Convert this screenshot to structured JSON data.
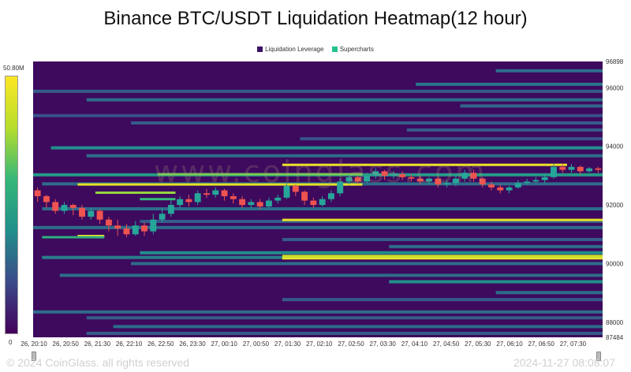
{
  "chart_data": {
    "type": "heatmap",
    "title": "Binance BTC/USDT Liquidation Heatmap(12 hour)",
    "legend": [
      {
        "name": "Liquidation Leverage",
        "color": "#3b1264"
      },
      {
        "name": "Supercharts",
        "color": "#23c28a"
      }
    ],
    "colorbar": {
      "max_label": "50.80M",
      "min_label": "0",
      "colors": [
        "#44015a",
        "#3b4b8a",
        "#218f8b",
        "#35b779",
        "#b6de2b",
        "#fde725"
      ]
    },
    "background_color": "#3d0a5e",
    "x_tick_labels": [
      "26, 20:10",
      "26, 20:50",
      "26, 21:30",
      "26, 22:10",
      "26, 22:50",
      "26, 23:30",
      "27, 00:10",
      "27, 00:50",
      "27, 01:30",
      "27, 02:10",
      "27, 02:50",
      "27, 03:30",
      "27, 04:10",
      "27, 04:50",
      "27, 05:30",
      "27, 06:10",
      "27, 06:50",
      "27, 07:30"
    ],
    "y_tick_labels": [
      "96898",
      "96000",
      "94000",
      "92000",
      "90000",
      "88000",
      "87484"
    ],
    "ylim": [
      87484,
      96898
    ],
    "xlim_index": [
      0,
      64
    ],
    "liquidation_bands": [
      {
        "price": 96580,
        "start": 52,
        "intensity": 0.3
      },
      {
        "price": 96120,
        "start": 43,
        "intensity": 0.33
      },
      {
        "price": 95880,
        "start": 0,
        "intensity": 0.25
      },
      {
        "price": 95590,
        "start": 6,
        "intensity": 0.3
      },
      {
        "price": 95380,
        "start": 48,
        "intensity": 0.28
      },
      {
        "price": 95050,
        "start": 0,
        "intensity": 0.22
      },
      {
        "price": 94800,
        "start": 11,
        "intensity": 0.25
      },
      {
        "price": 94560,
        "start": 42,
        "intensity": 0.25
      },
      {
        "price": 94260,
        "start": 30,
        "intensity": 0.22
      },
      {
        "price": 93950,
        "start": 2,
        "intensity": 0.4
      },
      {
        "price": 93680,
        "start": 6,
        "intensity": 0.3
      },
      {
        "price": 93030,
        "start": 0,
        "intensity": 0.45
      },
      {
        "price": 92720,
        "start": 1,
        "intensity": 0.3
      },
      {
        "price": 91870,
        "start": 1,
        "intensity": 0.3
      },
      {
        "price": 91440,
        "start": 12,
        "intensity": 0.25
      },
      {
        "price": 91230,
        "start": 0,
        "intensity": 0.3
      },
      {
        "price": 90820,
        "start": 28,
        "intensity": 0.25
      },
      {
        "price": 90580,
        "start": 40,
        "intensity": 0.3
      },
      {
        "price": 90370,
        "start": 12,
        "intensity": 0.4
      },
      {
        "price": 90210,
        "start": 1,
        "intensity": 0.35
      },
      {
        "price": 90000,
        "start": 11,
        "intensity": 0.3
      },
      {
        "price": 89600,
        "start": 3,
        "intensity": 0.3
      },
      {
        "price": 89380,
        "start": 40,
        "intensity": 0.4
      },
      {
        "price": 89010,
        "start": 52,
        "intensity": 0.3
      },
      {
        "price": 88770,
        "start": 28,
        "intensity": 0.25
      },
      {
        "price": 88350,
        "start": 0,
        "intensity": 0.3
      },
      {
        "price": 88150,
        "start": 6,
        "intensity": 0.25
      },
      {
        "price": 87850,
        "start": 9,
        "intensity": 0.3
      },
      {
        "price": 87620,
        "start": 6,
        "intensity": 0.25
      }
    ],
    "highlight_bands": [
      {
        "price": 93370,
        "start": 28,
        "end": 60,
        "intensity": 0.95
      },
      {
        "price": 93050,
        "start": 14,
        "end": 37,
        "intensity": 0.7
      },
      {
        "price": 92700,
        "start": 5,
        "end": 37,
        "intensity": 0.92
      },
      {
        "price": 92420,
        "start": 7,
        "end": 16,
        "intensity": 0.75
      },
      {
        "price": 92200,
        "start": 12,
        "end": 16,
        "intensity": 0.6
      },
      {
        "price": 91490,
        "start": 28,
        "end": 64,
        "intensity": 0.95
      },
      {
        "price": 90940,
        "start": 5,
        "end": 8,
        "intensity": 0.98
      },
      {
        "price": 90900,
        "start": 1,
        "end": 8,
        "intensity": 0.55
      },
      {
        "price": 90260,
        "start": 28,
        "end": 64,
        "intensity": 0.85
      },
      {
        "price": 90180,
        "start": 28,
        "end": 64,
        "intensity": 0.95
      }
    ],
    "candles": [
      {
        "o": 92500,
        "c": 92300,
        "h": 92600,
        "l": 92100
      },
      {
        "o": 92300,
        "c": 92100,
        "h": 92350,
        "l": 91900
      },
      {
        "o": 92100,
        "c": 91800,
        "h": 92200,
        "l": 91700
      },
      {
        "o": 91800,
        "c": 92000,
        "h": 92100,
        "l": 91700
      },
      {
        "o": 92000,
        "c": 91900,
        "h": 92050,
        "l": 91650
      },
      {
        "o": 91900,
        "c": 91600,
        "h": 92000,
        "l": 91500
      },
      {
        "o": 91600,
        "c": 91800,
        "h": 91900,
        "l": 91500
      },
      {
        "o": 91800,
        "c": 91500,
        "h": 91850,
        "l": 91350
      },
      {
        "o": 91500,
        "c": 91300,
        "h": 91600,
        "l": 91100
      },
      {
        "o": 91300,
        "c": 91200,
        "h": 91500,
        "l": 90950
      },
      {
        "o": 91200,
        "c": 91000,
        "h": 91350,
        "l": 90900
      },
      {
        "o": 91000,
        "c": 91300,
        "h": 91450,
        "l": 90950
      },
      {
        "o": 91300,
        "c": 91100,
        "h": 91400,
        "l": 90950
      },
      {
        "o": 91100,
        "c": 91500,
        "h": 91700,
        "l": 91000
      },
      {
        "o": 91500,
        "c": 91700,
        "h": 91900,
        "l": 91400
      },
      {
        "o": 91700,
        "c": 92000,
        "h": 92150,
        "l": 91600
      },
      {
        "o": 92000,
        "c": 92200,
        "h": 92300,
        "l": 91900
      },
      {
        "o": 92200,
        "c": 92100,
        "h": 92350,
        "l": 91950
      },
      {
        "o": 92100,
        "c": 92400,
        "h": 92500,
        "l": 92000
      },
      {
        "o": 92400,
        "c": 92350,
        "h": 92550,
        "l": 92250
      },
      {
        "o": 92350,
        "c": 92500,
        "h": 92600,
        "l": 92250
      },
      {
        "o": 92500,
        "c": 92300,
        "h": 92550,
        "l": 92150
      },
      {
        "o": 92300,
        "c": 92200,
        "h": 92400,
        "l": 92050
      },
      {
        "o": 92200,
        "c": 92000,
        "h": 92300,
        "l": 91900
      },
      {
        "o": 92000,
        "c": 92100,
        "h": 92200,
        "l": 91900
      },
      {
        "o": 92100,
        "c": 91950,
        "h": 92200,
        "l": 91850
      },
      {
        "o": 91950,
        "c": 92150,
        "h": 92250,
        "l": 91900
      },
      {
        "o": 92150,
        "c": 92250,
        "h": 92350,
        "l": 92050
      },
      {
        "o": 92250,
        "c": 92650,
        "h": 92750,
        "l": 92200
      },
      {
        "o": 92650,
        "c": 92450,
        "h": 92700,
        "l": 92300
      },
      {
        "o": 92450,
        "c": 92150,
        "h": 92500,
        "l": 92000
      },
      {
        "o": 92150,
        "c": 92000,
        "h": 92250,
        "l": 91900
      },
      {
        "o": 92000,
        "c": 92200,
        "h": 92300,
        "l": 91950
      },
      {
        "o": 92200,
        "c": 92400,
        "h": 92500,
        "l": 92100
      },
      {
        "o": 92400,
        "c": 92800,
        "h": 92900,
        "l": 92300
      },
      {
        "o": 92800,
        "c": 92950,
        "h": 93050,
        "l": 92700
      },
      {
        "o": 92950,
        "c": 92800,
        "h": 93000,
        "l": 92700
      },
      {
        "o": 92800,
        "c": 93000,
        "h": 93100,
        "l": 92750
      },
      {
        "o": 93000,
        "c": 93150,
        "h": 93250,
        "l": 92900
      },
      {
        "o": 93150,
        "c": 93000,
        "h": 93200,
        "l": 92850
      },
      {
        "o": 93000,
        "c": 93050,
        "h": 93150,
        "l": 92900
      },
      {
        "o": 93050,
        "c": 92950,
        "h": 93150,
        "l": 92850
      },
      {
        "o": 92950,
        "c": 92900,
        "h": 93050,
        "l": 92800
      },
      {
        "o": 92900,
        "c": 92800,
        "h": 93000,
        "l": 92700
      },
      {
        "o": 92800,
        "c": 92900,
        "h": 92950,
        "l": 92700
      },
      {
        "o": 92900,
        "c": 92700,
        "h": 92950,
        "l": 92600
      },
      {
        "o": 92700,
        "c": 92750,
        "h": 92850,
        "l": 92600
      },
      {
        "o": 92750,
        "c": 92900,
        "h": 93000,
        "l": 92650
      },
      {
        "o": 92900,
        "c": 93100,
        "h": 93200,
        "l": 92800
      },
      {
        "o": 93100,
        "c": 92900,
        "h": 93200,
        "l": 92800
      },
      {
        "o": 92900,
        "c": 92700,
        "h": 92950,
        "l": 92600
      },
      {
        "o": 92700,
        "c": 92600,
        "h": 92800,
        "l": 92500
      },
      {
        "o": 92600,
        "c": 92500,
        "h": 92700,
        "l": 92400
      },
      {
        "o": 92500,
        "c": 92600,
        "h": 92650,
        "l": 92400
      },
      {
        "o": 92600,
        "c": 92750,
        "h": 92850,
        "l": 92550
      },
      {
        "o": 92750,
        "c": 92800,
        "h": 92900,
        "l": 92700
      },
      {
        "o": 92800,
        "c": 92850,
        "h": 92950,
        "l": 92750
      },
      {
        "o": 92850,
        "c": 92950,
        "h": 93050,
        "l": 92750
      },
      {
        "o": 92950,
        "c": 93300,
        "h": 93400,
        "l": 92900
      },
      {
        "o": 93300,
        "c": 93200,
        "h": 93400,
        "l": 93100
      },
      {
        "o": 93200,
        "c": 93300,
        "h": 93400,
        "l": 93100
      },
      {
        "o": 93300,
        "c": 93150,
        "h": 93350,
        "l": 93050
      },
      {
        "o": 93150,
        "c": 93250,
        "h": 93300,
        "l": 93100
      },
      {
        "o": 93250,
        "c": 93200,
        "h": 93300,
        "l": 93100
      }
    ]
  },
  "footer": {
    "copyright": "© 2024 CoinGlass. all rights reserved",
    "timestamp": "2024-11-27 08:08:07"
  },
  "watermark": "www.coinglass.com"
}
